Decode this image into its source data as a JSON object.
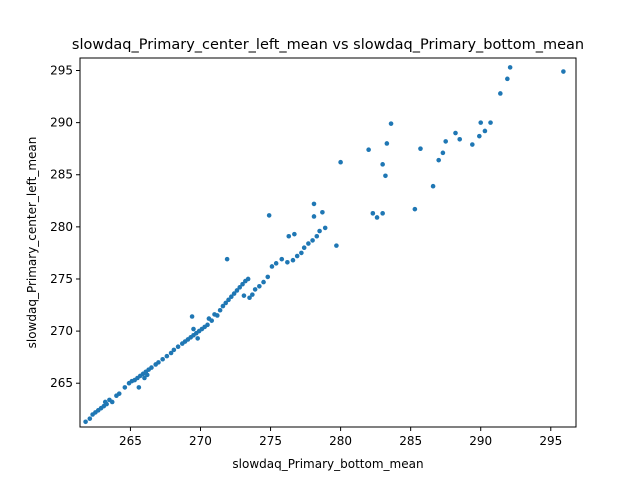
{
  "chart_data": {
    "type": "scatter",
    "title": "slowdaq_Primary_center_left_mean vs slowdaq_Primary_bottom_mean",
    "xlabel": "slowdaq_Primary_bottom_mean",
    "ylabel": "slowdaq_Primary_center_left_mean",
    "xlim": [
      261.4,
      296.8
    ],
    "ylim": [
      260.8,
      296.2
    ],
    "xticks": [
      265,
      270,
      275,
      280,
      285,
      290,
      295
    ],
    "yticks": [
      265,
      270,
      275,
      280,
      285,
      290,
      295
    ],
    "grid": false,
    "legend": "none",
    "series": [
      {
        "color": "#1f77b4",
        "points": [
          [
            261.8,
            261.3
          ],
          [
            262.1,
            261.6
          ],
          [
            262.3,
            262.0
          ],
          [
            262.5,
            262.2
          ],
          [
            262.7,
            262.4
          ],
          [
            262.9,
            262.6
          ],
          [
            263.1,
            262.8
          ],
          [
            263.3,
            263.0
          ],
          [
            263.2,
            263.2
          ],
          [
            263.5,
            263.4
          ],
          [
            263.7,
            263.2
          ],
          [
            264.0,
            263.8
          ],
          [
            264.2,
            264.0
          ],
          [
            264.6,
            264.6
          ],
          [
            264.9,
            265.0
          ],
          [
            265.1,
            265.2
          ],
          [
            265.3,
            265.3
          ],
          [
            265.5,
            265.5
          ],
          [
            265.7,
            265.7
          ],
          [
            265.9,
            265.9
          ],
          [
            266.1,
            266.1
          ],
          [
            266.3,
            266.3
          ],
          [
            266.5,
            266.5
          ],
          [
            266.2,
            265.8
          ],
          [
            266.0,
            265.5
          ],
          [
            265.6,
            264.6
          ],
          [
            266.8,
            266.8
          ],
          [
            267.0,
            267.0
          ],
          [
            267.3,
            267.3
          ],
          [
            267.6,
            267.6
          ],
          [
            267.9,
            267.9
          ],
          [
            268.1,
            268.2
          ],
          [
            268.4,
            268.5
          ],
          [
            268.7,
            268.8
          ],
          [
            268.9,
            269.0
          ],
          [
            269.1,
            269.2
          ],
          [
            269.3,
            269.4
          ],
          [
            269.5,
            269.6
          ],
          [
            269.7,
            269.8
          ],
          [
            269.9,
            270.0
          ],
          [
            270.1,
            270.2
          ],
          [
            270.3,
            270.4
          ],
          [
            270.5,
            270.6
          ],
          [
            269.4,
            271.4
          ],
          [
            269.5,
            270.2
          ],
          [
            269.8,
            269.3
          ],
          [
            270.6,
            271.2
          ],
          [
            270.8,
            271.0
          ],
          [
            271.0,
            271.6
          ],
          [
            271.2,
            271.5
          ],
          [
            271.4,
            272.0
          ],
          [
            271.6,
            272.4
          ],
          [
            271.8,
            272.7
          ],
          [
            272.0,
            273.0
          ],
          [
            272.2,
            273.3
          ],
          [
            272.4,
            273.6
          ],
          [
            272.6,
            273.9
          ],
          [
            272.8,
            274.2
          ],
          [
            273.0,
            274.5
          ],
          [
            273.2,
            274.8
          ],
          [
            273.4,
            275.0
          ],
          [
            273.1,
            273.4
          ],
          [
            273.5,
            273.2
          ],
          [
            273.7,
            273.5
          ],
          [
            273.9,
            274.0
          ],
          [
            274.2,
            274.3
          ],
          [
            274.5,
            274.7
          ],
          [
            274.8,
            275.2
          ],
          [
            275.1,
            276.2
          ],
          [
            275.4,
            276.5
          ],
          [
            275.8,
            276.9
          ],
          [
            276.2,
            276.6
          ],
          [
            276.6,
            276.8
          ],
          [
            276.9,
            277.2
          ],
          [
            277.2,
            277.5
          ],
          [
            277.4,
            278.0
          ],
          [
            277.7,
            278.4
          ],
          [
            278.0,
            278.7
          ],
          [
            278.3,
            279.1
          ],
          [
            278.5,
            279.6
          ],
          [
            278.9,
            279.9
          ],
          [
            276.3,
            279.1
          ],
          [
            276.7,
            279.3
          ],
          [
            278.1,
            281.0
          ],
          [
            278.7,
            281.4
          ],
          [
            278.1,
            282.2
          ],
          [
            274.9,
            281.1
          ],
          [
            271.9,
            276.9
          ],
          [
            279.7,
            278.2
          ],
          [
            280.0,
            286.2
          ],
          [
            282.0,
            287.4
          ],
          [
            282.3,
            281.3
          ],
          [
            282.6,
            280.9
          ],
          [
            283.0,
            281.3
          ],
          [
            283.0,
            286.0
          ],
          [
            283.2,
            284.9
          ],
          [
            283.3,
            288.0
          ],
          [
            283.6,
            289.9
          ],
          [
            285.3,
            281.7
          ],
          [
            285.7,
            287.5
          ],
          [
            286.6,
            283.9
          ],
          [
            287.0,
            286.4
          ],
          [
            287.3,
            287.1
          ],
          [
            287.5,
            288.2
          ],
          [
            288.2,
            289.0
          ],
          [
            288.5,
            288.4
          ],
          [
            289.4,
            287.9
          ],
          [
            289.9,
            288.7
          ],
          [
            290.0,
            290.0
          ],
          [
            290.3,
            289.2
          ],
          [
            290.7,
            290.0
          ],
          [
            291.4,
            292.8
          ],
          [
            291.9,
            294.2
          ],
          [
            292.1,
            295.3
          ],
          [
            295.9,
            294.9
          ]
        ]
      }
    ]
  }
}
